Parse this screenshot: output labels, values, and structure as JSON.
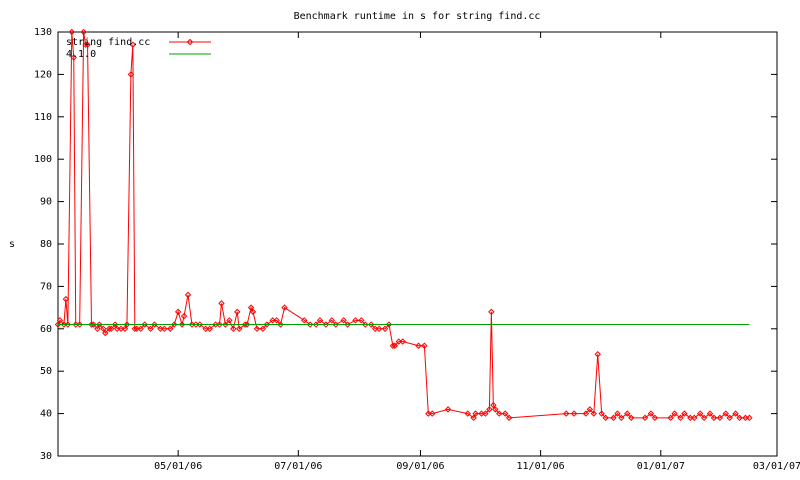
{
  "chart_data": {
    "type": "line",
    "title": "Benchmark runtime in s for string find.cc",
    "y_label": "s",
    "xlim": [
      "03/01/06",
      "03/01/07"
    ],
    "xticks": [
      "05/01/06",
      "07/01/06",
      "09/01/06",
      "11/01/06",
      "01/01/07",
      "03/01/07"
    ],
    "ylim": [
      30,
      130
    ],
    "yticks": [
      30,
      40,
      50,
      60,
      70,
      80,
      90,
      100,
      110,
      120,
      130
    ],
    "legend": "top-left",
    "series": [
      {
        "name": "string find.cc",
        "color": "#ff0000",
        "points": true,
        "x": [
          "03/01/06",
          "03/02/06",
          "03/04/06",
          "03/05/06",
          "03/06/06",
          "03/08/06",
          "03/09/06",
          "03/10/06",
          "03/12/06",
          "03/14/06",
          "03/15/06",
          "03/16/06",
          "03/18/06",
          "03/19/06",
          "03/21/06",
          "03/22/06",
          "03/24/06",
          "03/25/06",
          "03/27/06",
          "03/28/06",
          "03/30/06",
          "03/31/06",
          "04/02/06",
          "04/04/06",
          "04/05/06",
          "04/07/06",
          "04/08/06",
          "04/09/06",
          "04/10/06",
          "04/12/06",
          "04/14/06",
          "04/17/06",
          "04/19/06",
          "04/22/06",
          "04/24/06",
          "04/27/06",
          "04/29/06",
          "05/01/06",
          "05/03/06",
          "05/04/06",
          "05/06/06",
          "05/08/06",
          "05/10/06",
          "05/12/06",
          "05/15/06",
          "05/17/06",
          "05/20/06",
          "05/22/06",
          "05/23/06",
          "05/25/06",
          "05/27/06",
          "05/29/06",
          "05/31/06",
          "06/01/06",
          "06/04/06",
          "06/05/06",
          "06/07/06",
          "06/08/06",
          "06/10/06",
          "06/13/06",
          "06/15/06",
          "06/18/06",
          "06/20/06",
          "06/22/06",
          "06/24/06",
          "07/04/06",
          "07/07/06",
          "07/10/06",
          "07/12/06",
          "07/15/06",
          "07/18/06",
          "07/20/06",
          "07/24/06",
          "07/26/06",
          "07/30/06",
          "08/02/06",
          "08/04/06",
          "08/07/06",
          "08/09/06",
          "08/11/06",
          "08/14/06",
          "08/16/06",
          "08/18/06",
          "08/19/06",
          "08/21/06",
          "08/23/06",
          "08/31/06",
          "09/03/06",
          "09/05/06",
          "09/07/06",
          "09/15/06",
          "09/25/06",
          "09/28/06",
          "09/29/06",
          "10/02/06",
          "10/04/06",
          "10/06/06",
          "10/07/06",
          "10/08/06",
          "10/09/06",
          "10/11/06",
          "10/14/06",
          "10/16/06",
          "11/14/06",
          "11/18/06",
          "11/24/06",
          "11/26/06",
          "11/28/06",
          "11/30/06",
          "12/02/06",
          "12/04/06",
          "12/08/06",
          "12/10/06",
          "12/12/06",
          "12/15/06",
          "12/17/06",
          "12/24/06",
          "12/27/06",
          "12/29/06",
          "01/06/07",
          "01/08/07",
          "01/11/07",
          "01/13/07",
          "01/16/07",
          "01/18/07",
          "01/21/07",
          "01/23/07",
          "01/26/07",
          "01/28/07",
          "01/31/07",
          "02/03/07",
          "02/05/07",
          "02/08/07",
          "02/10/07",
          "02/13/07",
          "02/15/07"
        ],
        "values": [
          61,
          62,
          61,
          67,
          61,
          130,
          124,
          61,
          61,
          130,
          127,
          127,
          61,
          61,
          60,
          61,
          60,
          59,
          60,
          60,
          61,
          60,
          60,
          60,
          61,
          120,
          127,
          60,
          60,
          60,
          61,
          60,
          61,
          60,
          60,
          60,
          61,
          64,
          61,
          63,
          68,
          61,
          61,
          61,
          60,
          60,
          61,
          61,
          66,
          61,
          62,
          60,
          64,
          60,
          61,
          61,
          65,
          64,
          60,
          60,
          61,
          62,
          62,
          61,
          65,
          62,
          61,
          61,
          62,
          61,
          62,
          61,
          62,
          61,
          62,
          62,
          61,
          61,
          60,
          60,
          60,
          61,
          56,
          56,
          57,
          57,
          56,
          56,
          40,
          40,
          41,
          40,
          39,
          40,
          40,
          40,
          41,
          64,
          42,
          41,
          40,
          40,
          39,
          40,
          40,
          40,
          41,
          40,
          54,
          40,
          39,
          39,
          40,
          39,
          40,
          39,
          39,
          40,
          39,
          39,
          40,
          39,
          40,
          39,
          39,
          40,
          39,
          40,
          39,
          39,
          40,
          39,
          40,
          39,
          39,
          39
        ]
      },
      {
        "name": "4.1.0",
        "color": "#00a000",
        "points": false,
        "x": [
          "03/01/06",
          "02/15/07"
        ],
        "values": [
          61,
          61
        ]
      }
    ]
  }
}
